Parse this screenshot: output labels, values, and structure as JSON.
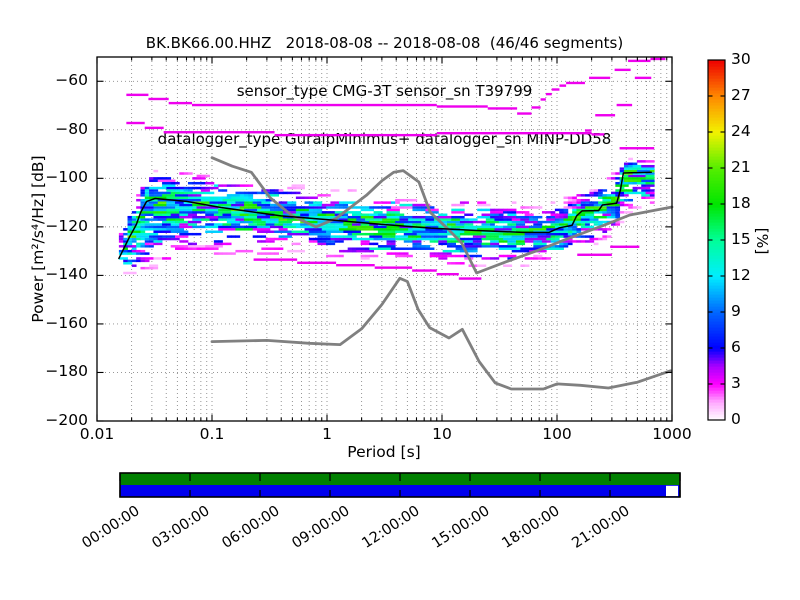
{
  "title": {
    "line1": "BK.BK66.00.HHZ   2018-08-08 -- 2018-08-08  (46/46 segments)",
    "line2": "sensor_type CMG-3T sensor_sn T39799",
    "line3": "datalogger_type GuralpMinimus+ datalogger_sn MINP-DD58"
  },
  "chart_data": {
    "type": "heatmap",
    "subtype": "ppsd-probabilistic-power-spectral-density",
    "title": "BK.BK66.00.HHZ   2018-08-08 -- 2018-08-08  (46/46 segments)",
    "xlabel": "Period [s]",
    "ylabel": "Power [m²/s⁴/Hz] [dB]",
    "xscale": "log",
    "xlim": [
      0.01,
      1000
    ],
    "ylim": [
      -200,
      -50
    ],
    "grid": true,
    "x_ticks": [
      0.01,
      0.1,
      1,
      10,
      100,
      1000
    ],
    "x_tick_labels": [
      "0.01",
      "0.1",
      "1",
      "10",
      "100",
      "1000"
    ],
    "y_ticks": [
      -60,
      -80,
      -100,
      -120,
      -140,
      -160,
      -180,
      -200
    ],
    "y_tick_labels": [
      "−60",
      "−80",
      "−100",
      "−120",
      "−140",
      "−160",
      "−180",
      "−200"
    ],
    "colorbar": {
      "label": "[%]",
      "vmin": 0,
      "vmax": 30,
      "ticks": [
        0,
        3,
        6,
        9,
        12,
        15,
        18,
        21,
        24,
        27,
        30
      ],
      "colormap_stops": [
        [
          0,
          "#ffffff"
        ],
        [
          1.5,
          "#ffaaff"
        ],
        [
          3,
          "#ff00ff"
        ],
        [
          4.5,
          "#aa00ff"
        ],
        [
          6,
          "#0000ff"
        ],
        [
          9,
          "#0066ff"
        ],
        [
          12,
          "#00eeff"
        ],
        [
          15,
          "#00ff99"
        ],
        [
          18,
          "#00e600"
        ],
        [
          21,
          "#55ee00"
        ],
        [
          24,
          "#f2f200"
        ],
        [
          27,
          "#ff8800"
        ],
        [
          30,
          "#ee0000"
        ]
      ]
    },
    "curves": {
      "noise_model_high_nhnm": {
        "color": "#808080",
        "width": 2.8,
        "points": [
          [
            0.1,
            -91.5
          ],
          [
            0.15,
            -95
          ],
          [
            0.22,
            -97.5
          ],
          [
            0.32,
            -108
          ],
          [
            0.5,
            -115.5
          ],
          [
            0.8,
            -120
          ],
          [
            1.2,
            -116.5
          ],
          [
            2.2,
            -107
          ],
          [
            3,
            -101
          ],
          [
            3.8,
            -97.5
          ],
          [
            4.6,
            -96.8
          ],
          [
            6.3,
            -101.5
          ],
          [
            7.9,
            -114
          ],
          [
            11,
            -120.4
          ],
          [
            14.8,
            -126.6
          ],
          [
            20,
            -139
          ],
          [
            36,
            -134.4
          ],
          [
            70,
            -129.5
          ],
          [
            122,
            -125
          ],
          [
            250,
            -119.5
          ],
          [
            430,
            -115.1
          ],
          [
            700,
            -113.2
          ],
          [
            1000,
            -111.8
          ]
        ]
      },
      "noise_model_low_nlnm": {
        "color": "#808080",
        "width": 2.8,
        "points": [
          [
            0.1,
            -167.3
          ],
          [
            0.3,
            -166.8
          ],
          [
            0.7,
            -168
          ],
          [
            1.3,
            -168.5
          ],
          [
            2,
            -162
          ],
          [
            3,
            -152
          ],
          [
            4.3,
            -141.2
          ],
          [
            5,
            -142.5
          ],
          [
            6.2,
            -154
          ],
          [
            7.8,
            -161.5
          ],
          [
            11.5,
            -165.8
          ],
          [
            15,
            -162.2
          ],
          [
            21,
            -175.5
          ],
          [
            29,
            -184.3
          ],
          [
            40,
            -186.8
          ],
          [
            76,
            -186.8
          ],
          [
            100,
            -184.7
          ],
          [
            160,
            -185.3
          ],
          [
            280,
            -186.4
          ],
          [
            500,
            -184
          ],
          [
            970,
            -179.3
          ]
        ]
      },
      "mode_line": {
        "color": "#000000",
        "width": 1.5,
        "points": [
          [
            0.0155,
            -133
          ],
          [
            0.019,
            -124.5
          ],
          [
            0.022,
            -119
          ],
          [
            0.024,
            -114
          ],
          [
            0.027,
            -109.5
          ],
          [
            0.032,
            -108.3
          ],
          [
            0.06,
            -109.5
          ],
          [
            0.12,
            -112
          ],
          [
            0.4,
            -115.5
          ],
          [
            1,
            -117
          ],
          [
            3,
            -119
          ],
          [
            8,
            -120.5
          ],
          [
            20,
            -121.5
          ],
          [
            50,
            -122.3
          ],
          [
            85,
            -122.3
          ],
          [
            105,
            -120.4
          ],
          [
            135,
            -119.4
          ],
          [
            148,
            -115.5
          ],
          [
            165,
            -113.4
          ],
          [
            230,
            -113.3
          ],
          [
            248,
            -111
          ],
          [
            330,
            -110.3
          ],
          [
            356,
            -104.8
          ],
          [
            378,
            -97.8
          ],
          [
            660,
            -97.5
          ]
        ]
      }
    },
    "density": {
      "period_range": [
        0.0155,
        700
      ],
      "peak_percent": 13,
      "envelope": [
        [
          0.0155,
          -124,
          -134
        ],
        [
          0.018,
          -115,
          -140
        ],
        [
          0.021,
          -110,
          -141
        ],
        [
          0.025,
          -102,
          -139
        ],
        [
          0.03,
          -97.5,
          -137
        ],
        [
          0.045,
          -96.5,
          -134.5
        ],
        [
          0.07,
          -98.5,
          -132.5
        ],
        [
          0.12,
          -100,
          -131
        ],
        [
          0.25,
          -101.5,
          -130.5
        ],
        [
          0.5,
          -103,
          -131
        ],
        [
          1,
          -104.5,
          -132
        ],
        [
          2.5,
          -106,
          -133
        ],
        [
          6,
          -107.5,
          -134
        ],
        [
          12,
          -108,
          -135.5
        ],
        [
          25,
          -109,
          -137
        ],
        [
          45,
          -110.5,
          -137.5
        ],
        [
          70,
          -112,
          -135
        ],
        [
          100,
          -110,
          -133
        ],
        [
          140,
          -107,
          -130.5
        ],
        [
          200,
          -104,
          -127.5
        ],
        [
          280,
          -100,
          -124
        ],
        [
          380,
          -93,
          -118
        ],
        [
          500,
          -91,
          -113
        ],
        [
          660,
          -91.5,
          -110
        ]
      ]
    },
    "outlier_segments": {
      "color": "#ee00ee",
      "segments": [
        [
          0.018,
          0.028,
          -65.6
        ],
        [
          0.028,
          0.042,
          -67.3
        ],
        [
          0.042,
          0.067,
          -69
        ],
        [
          0.067,
          9,
          -69.8
        ],
        [
          9,
          25,
          -70.4
        ],
        [
          25,
          45,
          -71.2
        ],
        [
          45,
          60,
          -73.3
        ],
        [
          60,
          72,
          -70.8
        ],
        [
          72,
          80,
          -67.5
        ],
        [
          80,
          90,
          -65.3
        ],
        [
          90,
          105,
          -63.4
        ],
        [
          105,
          120,
          -61.8
        ],
        [
          120,
          175,
          -60.7
        ],
        [
          190,
          290,
          -58.6
        ],
        [
          475,
          660,
          -58.6
        ],
        [
          317,
          437,
          -55.3
        ],
        [
          415,
          650,
          -51.6
        ],
        [
          650,
          876,
          -50.8
        ],
        [
          330,
          450,
          -69.8
        ],
        [
          215,
          320,
          -74
        ],
        [
          350,
          700,
          -87.6
        ],
        [
          0.018,
          0.026,
          -77.2
        ],
        [
          0.026,
          0.038,
          -79.2
        ],
        [
          0.038,
          0.35,
          -81
        ],
        [
          0.35,
          9,
          -82.2
        ],
        [
          9,
          200,
          -81.4
        ],
        [
          200,
          258,
          -81.9
        ],
        [
          175,
          200,
          -80.3
        ],
        [
          0.23,
          0.55,
          -133.5
        ],
        [
          0.55,
          1.2,
          -134.8
        ],
        [
          1.2,
          2.6,
          -135.8
        ],
        [
          2.6,
          5.5,
          -136.8
        ],
        [
          5.5,
          9,
          -138
        ],
        [
          9,
          14,
          -139.5
        ],
        [
          14,
          22,
          -141.3
        ],
        [
          150,
          300,
          -131.5
        ],
        [
          290,
          520,
          -128.2
        ]
      ]
    }
  },
  "timeline": {
    "row_colors": [
      "#008000",
      "#0000ee"
    ],
    "border_color": "#000000",
    "gap": {
      "row": 1,
      "start_frac": 0.975,
      "end_frac": 0.9965
    },
    "tick_labels": [
      "00:00:00",
      "03:00:00",
      "06:00:00",
      "09:00:00",
      "12:00:00",
      "15:00:00",
      "18:00:00",
      "21:00:00"
    ]
  }
}
